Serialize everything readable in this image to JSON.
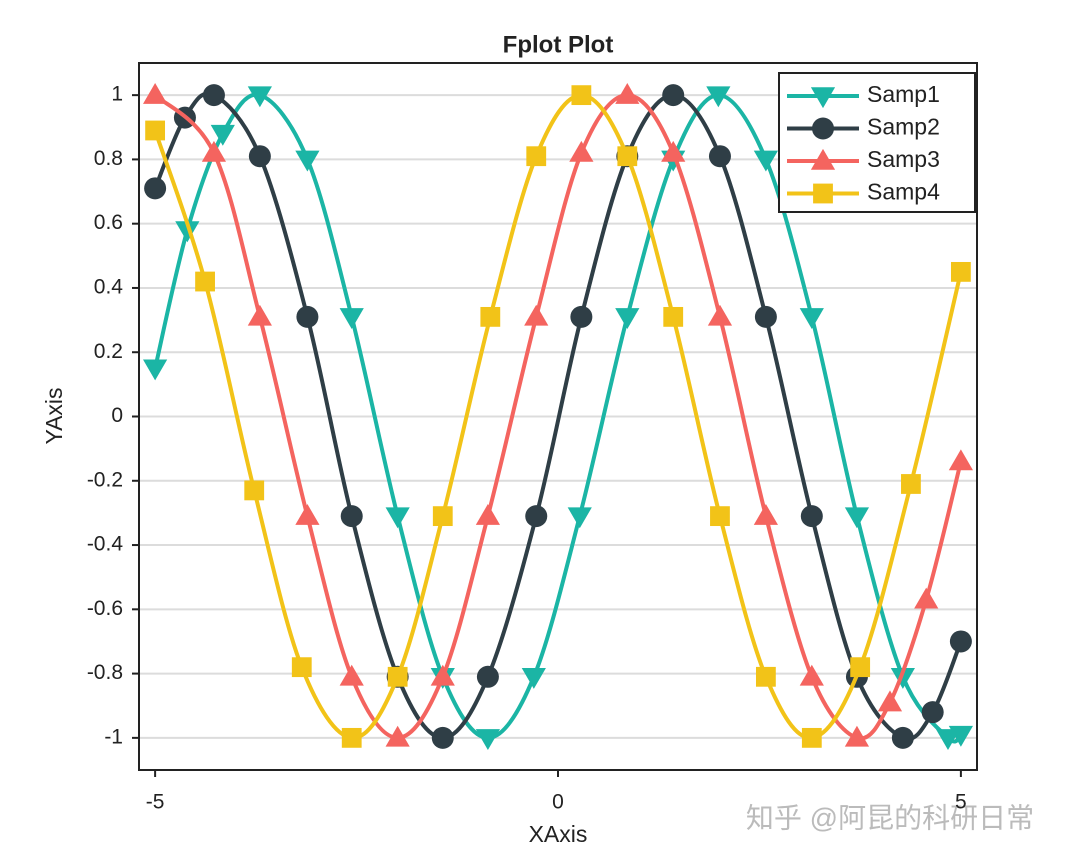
{
  "chart_data": {
    "type": "line",
    "title": "Fplot Plot",
    "xlabel": "XAxis",
    "ylabel": "YAxis",
    "xlim": [
      -5.2,
      5.2
    ],
    "ylim": [
      -1.1,
      1.1
    ],
    "xticks": [
      -5,
      0,
      5
    ],
    "yticks": [
      -1,
      -0.8,
      -0.6,
      -0.4,
      -0.2,
      0,
      0.2,
      0.4,
      0.6,
      0.8,
      1
    ],
    "grid": true,
    "legend": "upper right",
    "series": [
      {
        "name": "Samp1",
        "color": "#1bb5a5",
        "marker": "triangle-down",
        "x": [
          -5,
          -4.6,
          -4.16,
          -3.7,
          -3.11,
          -2.56,
          -1.99,
          -1.43,
          -0.87,
          -0.3,
          0.27,
          0.86,
          1.43,
          1.99,
          2.58,
          3.15,
          3.71,
          4.28,
          4.84,
          5
        ],
        "values": [
          0.15,
          0.58,
          0.88,
          1.0,
          0.8,
          0.31,
          -0.31,
          -0.81,
          -1.0,
          -0.81,
          -0.31,
          0.31,
          0.8,
          1.0,
          0.8,
          0.31,
          -0.31,
          -0.81,
          -1.0,
          -0.99
        ]
      },
      {
        "name": "Samp2",
        "color": "#2f3e46",
        "marker": "circle",
        "x": [
          -5,
          -4.63,
          -4.27,
          -3.7,
          -3.11,
          -2.56,
          -1.99,
          -1.43,
          -0.87,
          -0.27,
          0.29,
          0.86,
          1.43,
          2.01,
          2.58,
          3.15,
          3.71,
          4.28,
          4.65,
          5
        ],
        "values": [
          0.71,
          0.93,
          1.0,
          0.81,
          0.31,
          -0.31,
          -0.81,
          -1.0,
          -0.81,
          -0.31,
          0.31,
          0.81,
          1.0,
          0.81,
          0.31,
          -0.31,
          -0.81,
          -1.0,
          -0.92,
          -0.7
        ]
      },
      {
        "name": "Samp3",
        "color": "#f4645f",
        "marker": "triangle-up",
        "x": [
          -5,
          -4.27,
          -3.7,
          -3.11,
          -2.56,
          -1.99,
          -1.43,
          -0.87,
          -0.27,
          0.29,
          0.86,
          1.43,
          2.01,
          2.58,
          3.15,
          3.71,
          4.12,
          4.57,
          5
        ],
        "values": [
          1.0,
          0.82,
          0.31,
          -0.31,
          -0.81,
          -1.0,
          -0.81,
          -0.31,
          0.31,
          0.82,
          1.0,
          0.82,
          0.31,
          -0.31,
          -0.81,
          -1.0,
          -0.89,
          -0.57,
          -0.14
        ]
      },
      {
        "name": "Samp4",
        "color": "#f2c318",
        "marker": "square",
        "x": [
          -5,
          -4.38,
          -3.77,
          -3.18,
          -2.56,
          -1.99,
          -1.43,
          -0.84,
          -0.27,
          0.29,
          0.86,
          1.43,
          2.01,
          2.58,
          3.15,
          3.75,
          4.38,
          5
        ],
        "values": [
          0.89,
          0.42,
          -0.23,
          -0.78,
          -1.0,
          -0.81,
          -0.31,
          0.31,
          0.81,
          1.0,
          0.81,
          0.31,
          -0.31,
          -0.81,
          -1.0,
          -0.78,
          -0.21,
          0.45
        ]
      }
    ]
  },
  "watermark": "知乎 @阿昆的科研日常"
}
